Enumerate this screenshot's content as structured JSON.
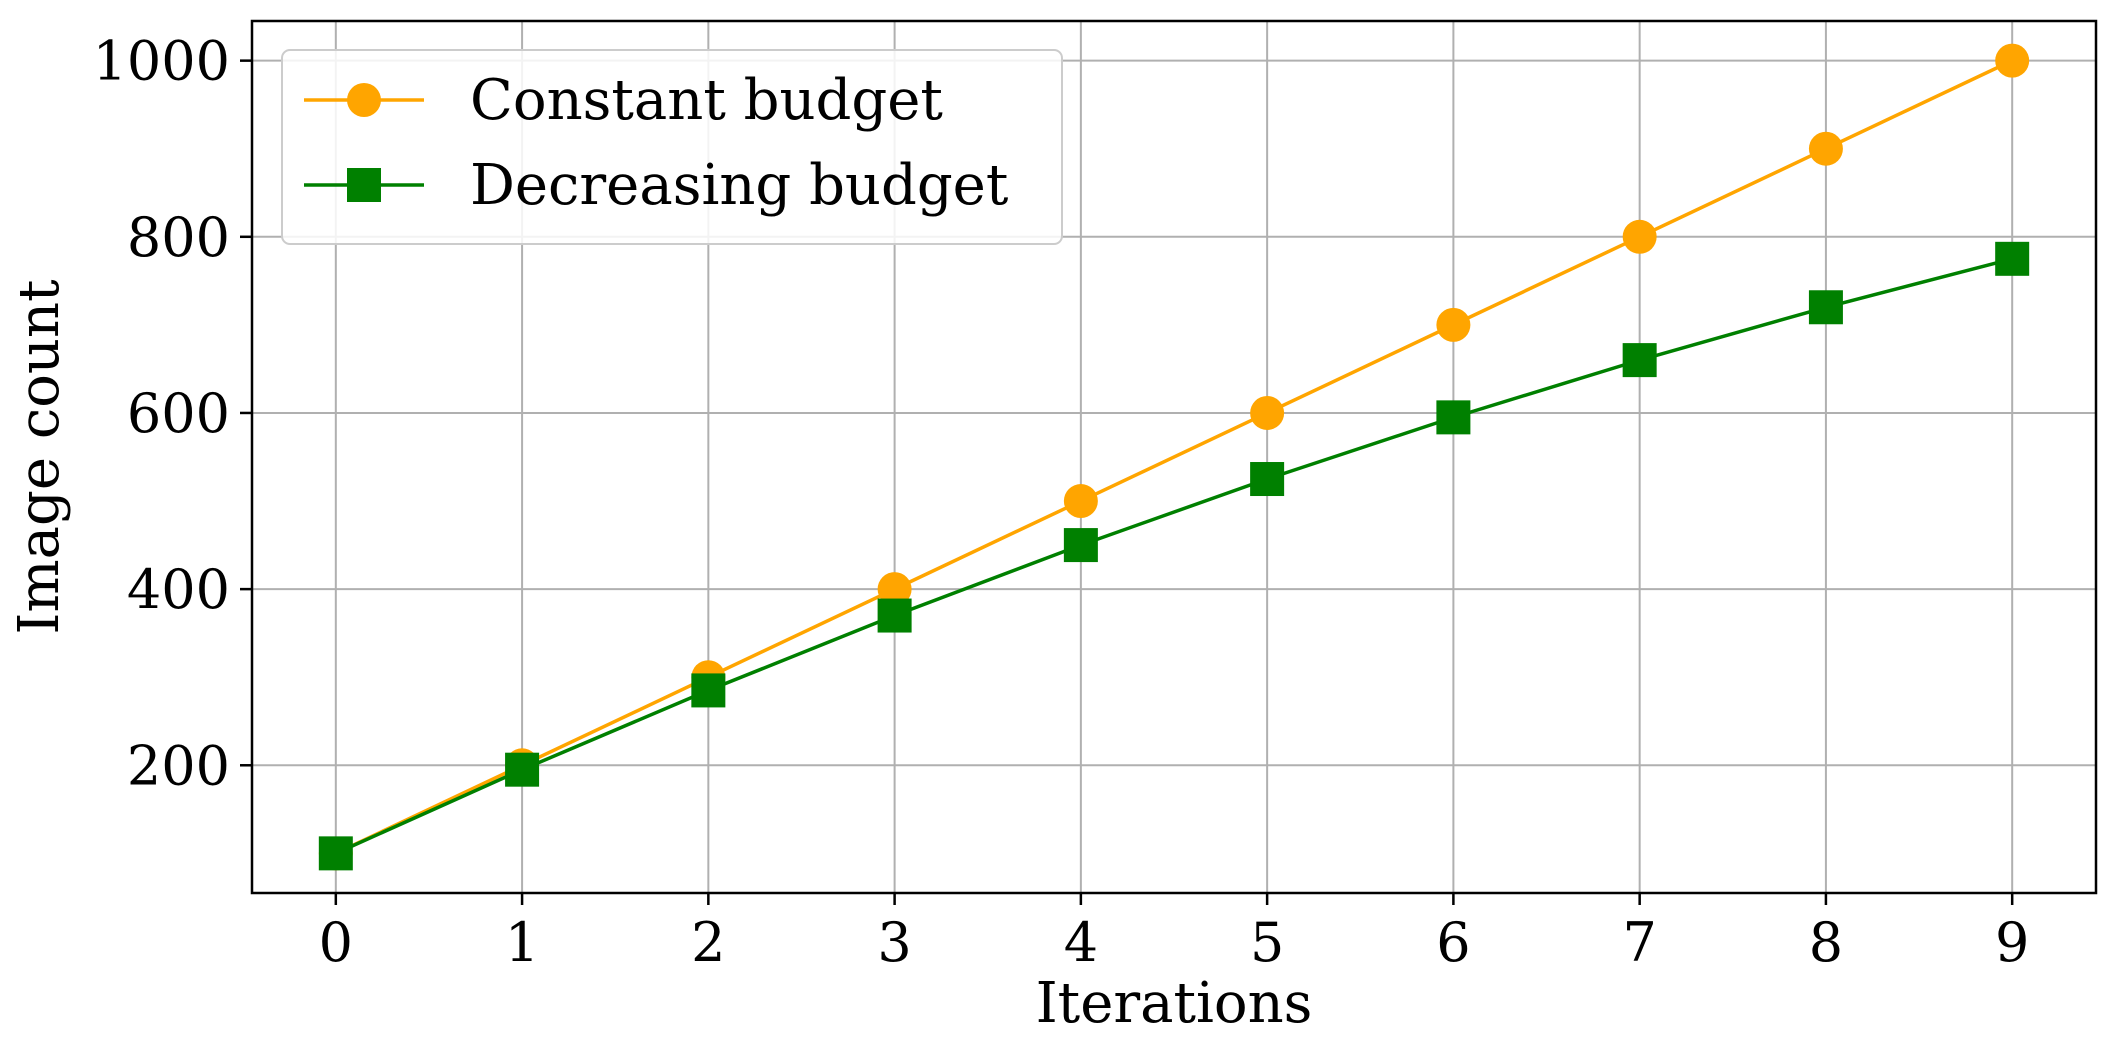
{
  "chart_data": {
    "type": "line",
    "title": "",
    "xlabel": "Iterations",
    "ylabel": "Image count",
    "x": [
      0,
      1,
      2,
      3,
      4,
      5,
      6,
      7,
      8,
      9
    ],
    "xticks": [
      "0",
      "1",
      "2",
      "3",
      "4",
      "5",
      "6",
      "7",
      "8",
      "9"
    ],
    "yticks": [
      "200",
      "400",
      "600",
      "800",
      "1000"
    ],
    "ytick_values": [
      200,
      400,
      600,
      800,
      1000
    ],
    "xlim": [
      -0.45,
      9.45
    ],
    "ylim": [
      55,
      1045
    ],
    "grid": true,
    "legend_position": "top-left",
    "series": [
      {
        "name": "Constant budget",
        "color": "#FFA500",
        "marker": "circle",
        "values": [
          100,
          200,
          300,
          400,
          500,
          600,
          700,
          800,
          900,
          1000
        ]
      },
      {
        "name": "Decreasing budget",
        "color": "#008000",
        "marker": "square",
        "values": [
          100,
          195,
          285,
          370,
          450,
          525,
          595,
          660,
          720,
          775
        ]
      }
    ]
  }
}
